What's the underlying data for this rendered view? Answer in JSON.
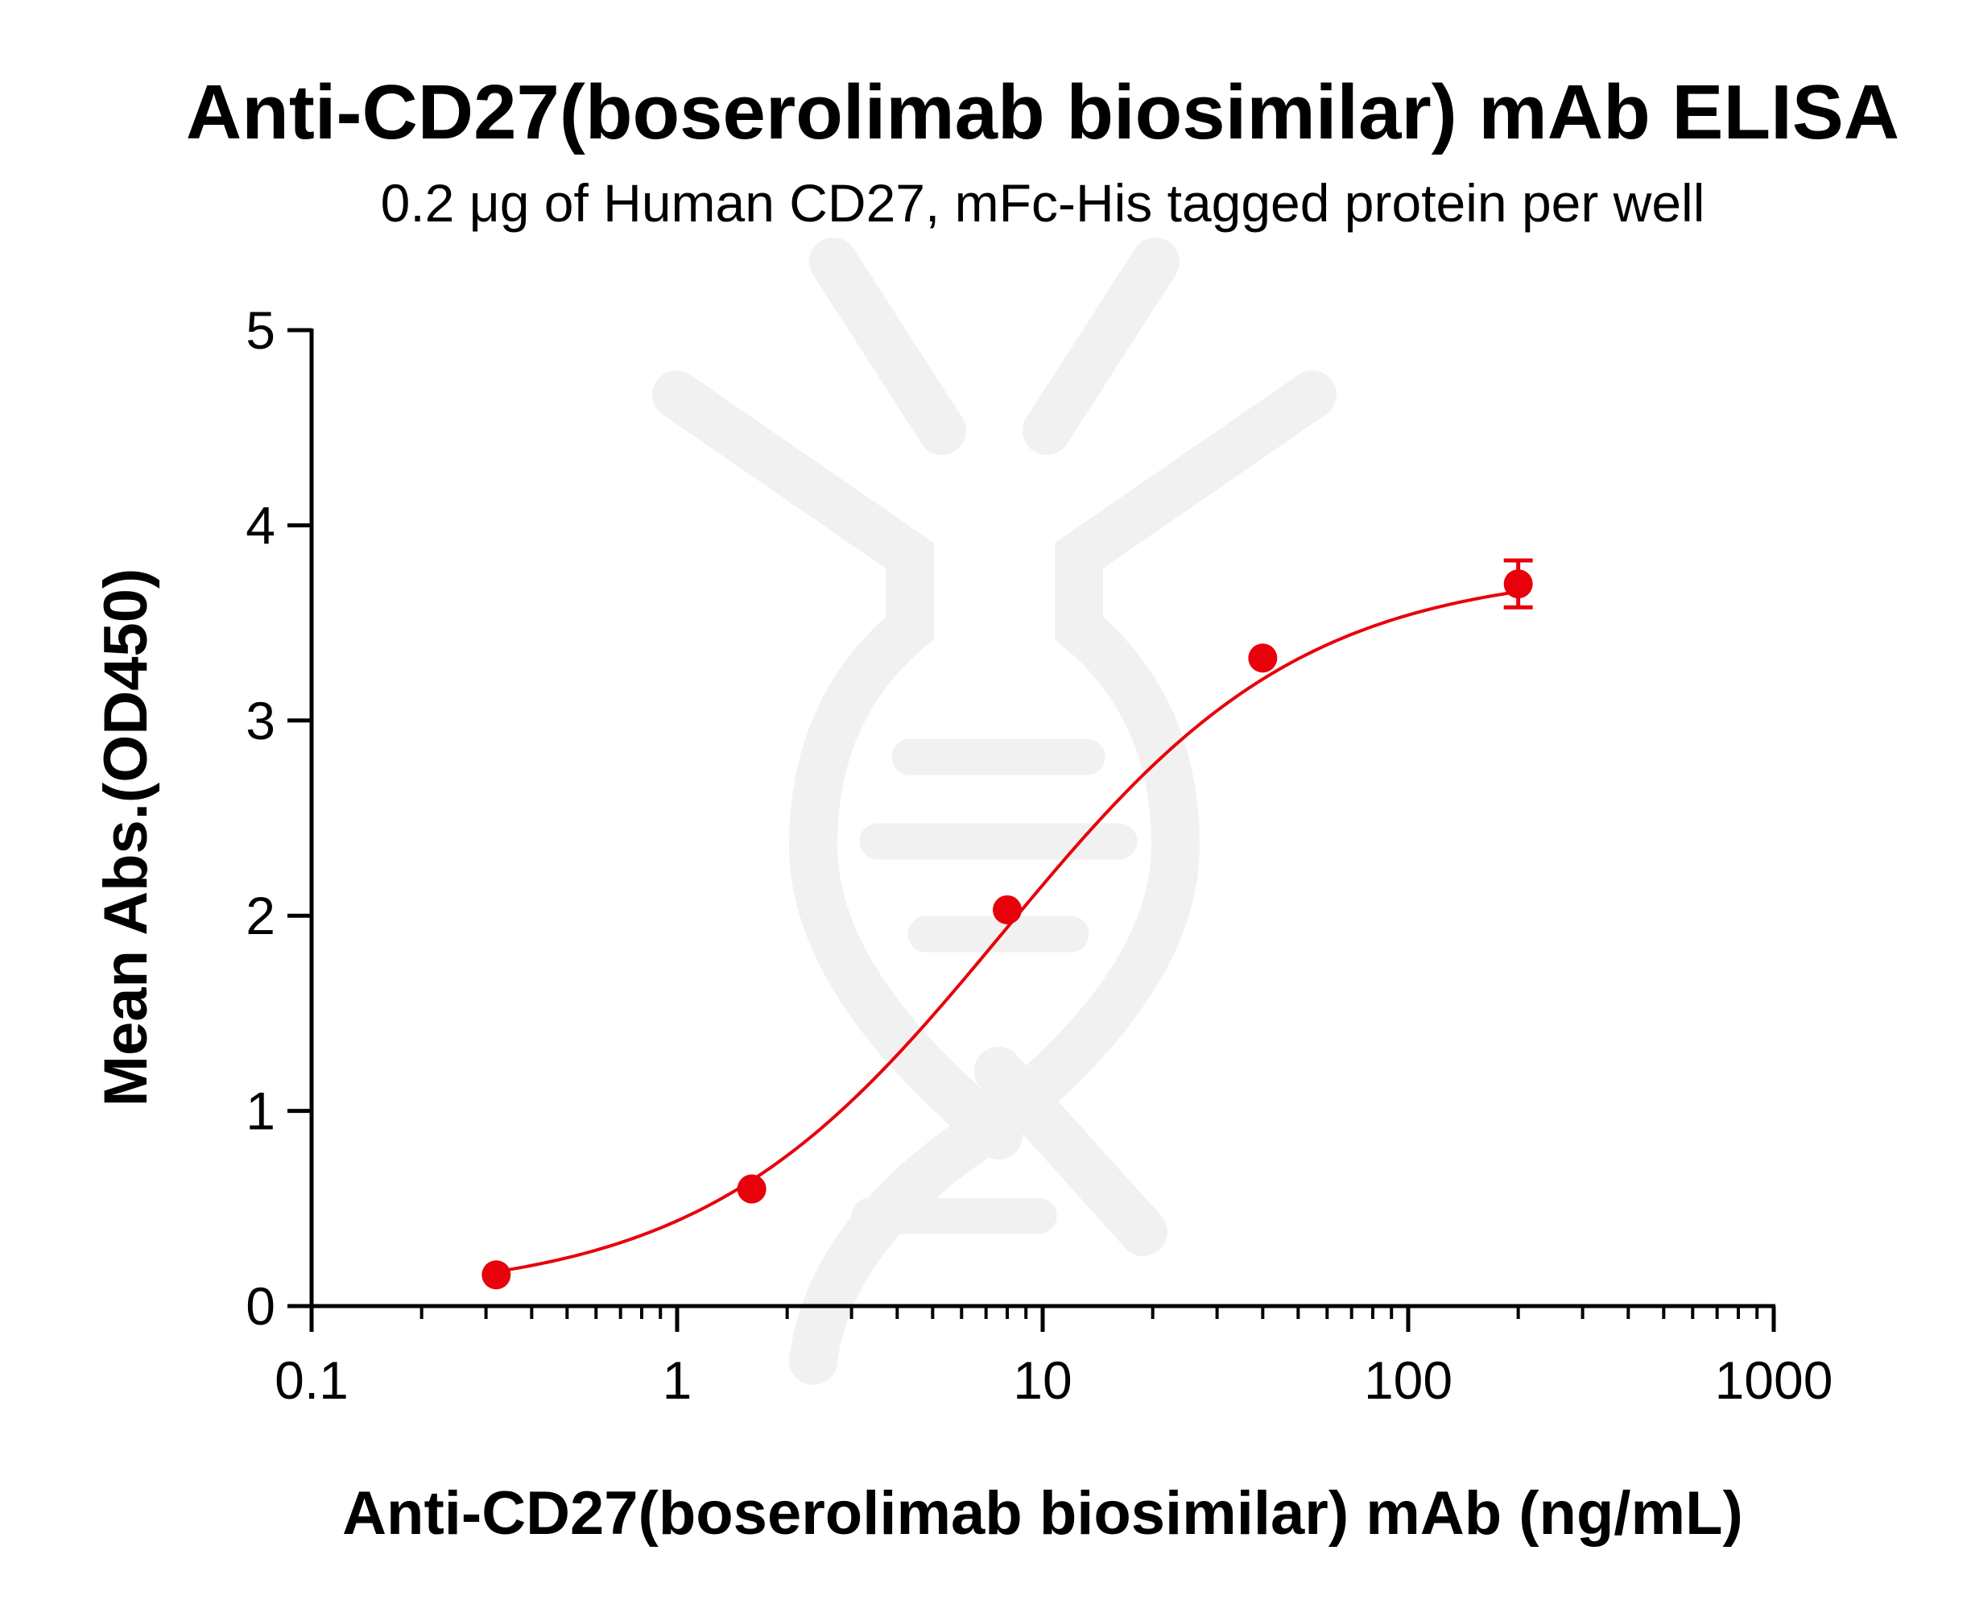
{
  "chart_data": {
    "type": "scatter",
    "title": "Anti-CD27(boserolimab biosimilar) mAb ELISA",
    "subtitle": "0.2 μg of Human CD27, mFc-His tagged protein per well",
    "xlabel": "Anti-CD27(boserolimab biosimilar) mAb (ng/mL)",
    "ylabel": "Mean Abs.(OD450)",
    "x_scale": "log",
    "xlim": [
      0.1,
      1000
    ],
    "ylim": [
      0,
      5
    ],
    "x_ticks": [
      0.1,
      1,
      10,
      100,
      1000
    ],
    "x_tick_labels": [
      "0.1",
      "1",
      "10",
      "100",
      "1000"
    ],
    "y_ticks": [
      0,
      1,
      2,
      3,
      4,
      5
    ],
    "y_tick_labels": [
      "0",
      "1",
      "2",
      "3",
      "4",
      "5"
    ],
    "grid": false,
    "color": "#e8000b",
    "series": [
      {
        "x": [
          0.32,
          1.6,
          8,
          40,
          200
        ],
        "y": [
          0.16,
          0.6,
          2.03,
          3.32,
          3.7
        ],
        "error": [
          0,
          0,
          0,
          0,
          0.12
        ]
      }
    ],
    "fit_curve": {
      "model": "4PL",
      "bottom": 0.05,
      "top": 3.78,
      "ec50": 7.8,
      "hill": 1.05
    }
  }
}
